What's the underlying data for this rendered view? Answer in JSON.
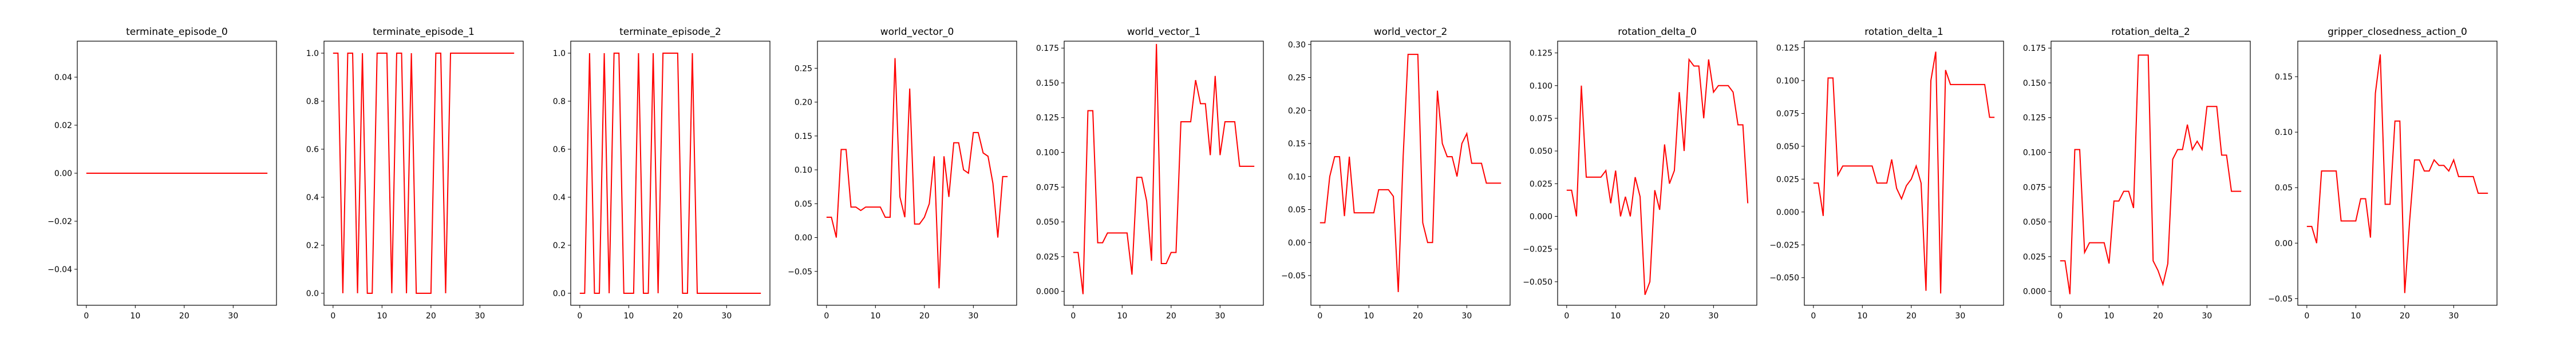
{
  "line_color": "#ff0000",
  "chart_data": [
    {
      "type": "line",
      "title": "terminate_episode_0",
      "x": [
        0,
        1,
        2,
        3,
        4,
        5,
        6,
        7,
        8,
        9,
        10,
        11,
        12,
        13,
        14,
        15,
        16,
        17,
        18,
        19,
        20,
        21,
        22,
        23,
        24,
        25,
        26,
        27,
        28,
        29,
        30,
        31,
        32,
        33,
        34,
        35,
        36,
        37
      ],
      "values": [
        0,
        0,
        0,
        0,
        0,
        0,
        0,
        0,
        0,
        0,
        0,
        0,
        0,
        0,
        0,
        0,
        0,
        0,
        0,
        0,
        0,
        0,
        0,
        0,
        0,
        0,
        0,
        0,
        0,
        0,
        0,
        0,
        0,
        0,
        0,
        0,
        0,
        0
      ],
      "xlim": [
        -1.85,
        38.85
      ],
      "ylim": [
        -0.055,
        0.055
      ],
      "xticks": [
        0,
        10,
        20,
        30
      ],
      "yticks": [
        -0.04,
        -0.02,
        0.0,
        0.02,
        0.04
      ],
      "xtick_labels": [
        "0",
        "10",
        "20",
        "30"
      ],
      "ytick_labels": [
        "−0.04",
        "−0.02",
        "0.00",
        "0.02",
        "0.04"
      ]
    },
    {
      "type": "line",
      "title": "terminate_episode_1",
      "x": [
        0,
        1,
        2,
        3,
        4,
        5,
        6,
        7,
        8,
        9,
        10,
        11,
        12,
        13,
        14,
        15,
        16,
        17,
        18,
        19,
        20,
        21,
        22,
        23,
        24,
        25,
        26,
        27,
        28,
        29,
        30,
        31,
        32,
        33,
        34,
        35,
        36,
        37
      ],
      "values": [
        1,
        1,
        0,
        1,
        1,
        0,
        1,
        0,
        0,
        1,
        1,
        1,
        0,
        1,
        1,
        0,
        1,
        0,
        0,
        0,
        0,
        1,
        1,
        0,
        1,
        1,
        1,
        1,
        1,
        1,
        1,
        1,
        1,
        1,
        1,
        1,
        1,
        1
      ],
      "xlim": [
        -1.85,
        38.85
      ],
      "ylim": [
        -0.05,
        1.05
      ],
      "xticks": [
        0,
        10,
        20,
        30
      ],
      "yticks": [
        0.0,
        0.2,
        0.4,
        0.6,
        0.8,
        1.0
      ],
      "xtick_labels": [
        "0",
        "10",
        "20",
        "30"
      ],
      "ytick_labels": [
        "0.0",
        "0.2",
        "0.4",
        "0.6",
        "0.8",
        "1.0"
      ]
    },
    {
      "type": "line",
      "title": "terminate_episode_2",
      "x": [
        0,
        1,
        2,
        3,
        4,
        5,
        6,
        7,
        8,
        9,
        10,
        11,
        12,
        13,
        14,
        15,
        16,
        17,
        18,
        19,
        20,
        21,
        22,
        23,
        24,
        25,
        26,
        27,
        28,
        29,
        30,
        31,
        32,
        33,
        34,
        35,
        36,
        37
      ],
      "values": [
        0,
        0,
        1,
        0,
        0,
        1,
        0,
        1,
        1,
        0,
        0,
        0,
        1,
        0,
        0,
        1,
        0,
        1,
        1,
        1,
        1,
        0,
        0,
        1,
        0,
        0,
        0,
        0,
        0,
        0,
        0,
        0,
        0,
        0,
        0,
        0,
        0,
        0
      ],
      "xlim": [
        -1.85,
        38.85
      ],
      "ylim": [
        -0.05,
        1.05
      ],
      "xticks": [
        0,
        10,
        20,
        30
      ],
      "yticks": [
        0.0,
        0.2,
        0.4,
        0.6,
        0.8,
        1.0
      ],
      "xtick_labels": [
        "0",
        "10",
        "20",
        "30"
      ],
      "ytick_labels": [
        "0.0",
        "0.2",
        "0.4",
        "0.6",
        "0.8",
        "1.0"
      ]
    },
    {
      "type": "line",
      "title": "world_vector_0",
      "x": [
        0,
        1,
        2,
        3,
        4,
        5,
        6,
        7,
        8,
        9,
        10,
        11,
        12,
        13,
        14,
        15,
        16,
        17,
        18,
        19,
        20,
        21,
        22,
        23,
        24,
        25,
        26,
        27,
        28,
        29,
        30,
        31,
        32,
        33,
        34,
        35,
        36,
        37
      ],
      "values": [
        0.03,
        0.03,
        0.0,
        0.13,
        0.13,
        0.045,
        0.045,
        0.04,
        0.045,
        0.045,
        0.045,
        0.045,
        0.03,
        0.03,
        0.265,
        0.06,
        0.03,
        0.22,
        0.02,
        0.02,
        0.03,
        0.05,
        0.12,
        -0.075,
        0.12,
        0.06,
        0.14,
        0.14,
        0.1,
        0.095,
        0.155,
        0.155,
        0.125,
        0.12,
        0.08,
        0.0,
        0.09,
        0.09
      ],
      "xlim": [
        -1.85,
        38.85
      ],
      "ylim": [
        -0.1,
        0.29
      ],
      "xticks": [
        0,
        10,
        20,
        30
      ],
      "yticks": [
        -0.05,
        0.0,
        0.05,
        0.1,
        0.15,
        0.2,
        0.25
      ],
      "xtick_labels": [
        "0",
        "10",
        "20",
        "30"
      ],
      "ytick_labels": [
        "−0.05",
        "0.00",
        "0.05",
        "0.10",
        "0.15",
        "0.20",
        "0.25"
      ]
    },
    {
      "type": "line",
      "title": "world_vector_1",
      "x": [
        0,
        1,
        2,
        3,
        4,
        5,
        6,
        7,
        8,
        9,
        10,
        11,
        12,
        13,
        14,
        15,
        16,
        17,
        18,
        19,
        20,
        21,
        22,
        23,
        24,
        25,
        26,
        27,
        28,
        29,
        30,
        31,
        32,
        33,
        34,
        35,
        36,
        37
      ],
      "values": [
        0.028,
        0.028,
        -0.002,
        0.13,
        0.13,
        0.035,
        0.035,
        0.042,
        0.042,
        0.042,
        0.042,
        0.042,
        0.012,
        0.082,
        0.082,
        0.065,
        0.022,
        0.178,
        0.02,
        0.02,
        0.028,
        0.028,
        0.122,
        0.122,
        0.122,
        0.152,
        0.135,
        0.135,
        0.098,
        0.155,
        0.098,
        0.122,
        0.122,
        0.122,
        0.09,
        0.09,
        0.09,
        0.09
      ],
      "xlim": [
        -1.85,
        38.85
      ],
      "ylim": [
        -0.01,
        0.18
      ],
      "xticks": [
        0,
        10,
        20,
        30
      ],
      "yticks": [
        0.0,
        0.025,
        0.05,
        0.075,
        0.1,
        0.125,
        0.15,
        0.175
      ],
      "xtick_labels": [
        "0",
        "10",
        "20",
        "30"
      ],
      "ytick_labels": [
        "0.000",
        "0.025",
        "0.050",
        "0.075",
        "0.100",
        "0.125",
        "0.150",
        "0.175"
      ]
    },
    {
      "type": "line",
      "title": "world_vector_2",
      "x": [
        0,
        1,
        2,
        3,
        4,
        5,
        6,
        7,
        8,
        9,
        10,
        11,
        12,
        13,
        14,
        15,
        16,
        17,
        18,
        19,
        20,
        21,
        22,
        23,
        24,
        25,
        26,
        27,
        28,
        29,
        30,
        31,
        32,
        33,
        34,
        35,
        36,
        37
      ],
      "values": [
        0.03,
        0.03,
        0.1,
        0.13,
        0.13,
        0.04,
        0.13,
        0.045,
        0.045,
        0.045,
        0.045,
        0.045,
        0.08,
        0.08,
        0.08,
        0.07,
        -0.075,
        0.13,
        0.285,
        0.285,
        0.285,
        0.03,
        0.0,
        0.0,
        0.23,
        0.15,
        0.13,
        0.13,
        0.1,
        0.15,
        0.165,
        0.12,
        0.12,
        0.12,
        0.09,
        0.09,
        0.09,
        0.09
      ],
      "xlim": [
        -1.85,
        38.85
      ],
      "ylim": [
        -0.095,
        0.305
      ],
      "xticks": [
        0,
        10,
        20,
        30
      ],
      "yticks": [
        -0.05,
        0.0,
        0.05,
        0.1,
        0.15,
        0.2,
        0.25,
        0.3
      ],
      "xtick_labels": [
        "0",
        "10",
        "20",
        "30"
      ],
      "ytick_labels": [
        "−0.05",
        "0.00",
        "0.05",
        "0.10",
        "0.15",
        "0.20",
        "0.25",
        "0.30"
      ]
    },
    {
      "type": "line",
      "title": "rotation_delta_0",
      "x": [
        0,
        1,
        2,
        3,
        4,
        5,
        6,
        7,
        8,
        9,
        10,
        11,
        12,
        13,
        14,
        15,
        16,
        17,
        18,
        19,
        20,
        21,
        22,
        23,
        24,
        25,
        26,
        27,
        28,
        29,
        30,
        31,
        32,
        33,
        34,
        35,
        36,
        37
      ],
      "values": [
        0.02,
        0.02,
        0.0,
        0.1,
        0.03,
        0.03,
        0.03,
        0.03,
        0.035,
        0.01,
        0.035,
        0.0,
        0.015,
        0.0,
        0.03,
        0.015,
        -0.06,
        -0.05,
        0.02,
        0.005,
        0.055,
        0.025,
        0.035,
        0.095,
        0.05,
        0.12,
        0.115,
        0.115,
        0.075,
        0.12,
        0.095,
        0.1,
        0.1,
        0.1,
        0.095,
        0.07,
        0.07,
        0.01
      ],
      "xlim": [
        -1.85,
        38.85
      ],
      "ylim": [
        -0.068,
        0.134
      ],
      "xticks": [
        0,
        10,
        20,
        30
      ],
      "yticks": [
        -0.05,
        -0.025,
        0.0,
        0.025,
        0.05,
        0.075,
        0.1,
        0.125
      ],
      "xtick_labels": [
        "0",
        "10",
        "20",
        "30"
      ],
      "ytick_labels": [
        "−0.050",
        "−0.025",
        "0.000",
        "0.025",
        "0.050",
        "0.075",
        "0.100",
        "0.125"
      ]
    },
    {
      "type": "line",
      "title": "rotation_delta_1",
      "x": [
        0,
        1,
        2,
        3,
        4,
        5,
        6,
        7,
        8,
        9,
        10,
        11,
        12,
        13,
        14,
        15,
        16,
        17,
        18,
        19,
        20,
        21,
        22,
        23,
        24,
        25,
        26,
        27,
        28,
        29,
        30,
        31,
        32,
        33,
        34,
        35,
        36,
        37
      ],
      "values": [
        0.022,
        0.022,
        -0.003,
        0.102,
        0.102,
        0.028,
        0.035,
        0.035,
        0.035,
        0.035,
        0.035,
        0.035,
        0.035,
        0.022,
        0.022,
        0.022,
        0.04,
        0.018,
        0.01,
        0.02,
        0.025,
        0.035,
        0.022,
        -0.06,
        0.1,
        0.122,
        -0.062,
        0.108,
        0.097,
        0.097,
        0.097,
        0.097,
        0.097,
        0.097,
        0.097,
        0.097,
        0.072,
        0.072
      ],
      "xlim": [
        -1.85,
        38.85
      ],
      "ylim": [
        -0.071,
        0.13
      ],
      "xticks": [
        0,
        10,
        20,
        30
      ],
      "yticks": [
        -0.05,
        -0.025,
        0.0,
        0.025,
        0.05,
        0.075,
        0.1,
        0.125
      ],
      "xtick_labels": [
        "0",
        "10",
        "20",
        "30"
      ],
      "ytick_labels": [
        "−0.050",
        "−0.025",
        "0.000",
        "0.025",
        "0.050",
        "0.075",
        "0.100",
        "0.125"
      ]
    },
    {
      "type": "line",
      "title": "rotation_delta_2",
      "x": [
        0,
        1,
        2,
        3,
        4,
        5,
        6,
        7,
        8,
        9,
        10,
        11,
        12,
        13,
        14,
        15,
        16,
        17,
        18,
        19,
        20,
        21,
        22,
        23,
        24,
        25,
        26,
        27,
        28,
        29,
        30,
        31,
        32,
        33,
        34,
        35,
        36,
        37
      ],
      "values": [
        0.022,
        0.022,
        -0.002,
        0.102,
        0.102,
        0.028,
        0.035,
        0.035,
        0.035,
        0.035,
        0.02,
        0.065,
        0.065,
        0.072,
        0.072,
        0.06,
        0.17,
        0.17,
        0.17,
        0.022,
        0.015,
        0.005,
        0.02,
        0.095,
        0.102,
        0.102,
        0.12,
        0.102,
        0.108,
        0.102,
        0.133,
        0.133,
        0.133,
        0.098,
        0.098,
        0.072,
        0.072,
        0.072
      ],
      "xlim": [
        -1.85,
        38.85
      ],
      "ylim": [
        -0.01,
        0.18
      ],
      "xticks": [
        0,
        10,
        20,
        30
      ],
      "yticks": [
        0.0,
        0.025,
        0.05,
        0.075,
        0.1,
        0.125,
        0.15,
        0.175
      ],
      "xtick_labels": [
        "0",
        "10",
        "20",
        "30"
      ],
      "ytick_labels": [
        "0.000",
        "0.025",
        "0.050",
        "0.075",
        "0.100",
        "0.125",
        "0.150",
        "0.175"
      ]
    },
    {
      "type": "line",
      "title": "gripper_closedness_action_0",
      "x": [
        0,
        1,
        2,
        3,
        4,
        5,
        6,
        7,
        8,
        9,
        10,
        11,
        12,
        13,
        14,
        15,
        16,
        17,
        18,
        19,
        20,
        21,
        22,
        23,
        24,
        25,
        26,
        27,
        28,
        29,
        30,
        31,
        32,
        33,
        34,
        35,
        36,
        37
      ],
      "values": [
        0.015,
        0.015,
        0.0,
        0.065,
        0.065,
        0.065,
        0.065,
        0.02,
        0.02,
        0.02,
        0.02,
        0.04,
        0.04,
        0.005,
        0.135,
        0.17,
        0.035,
        0.035,
        0.11,
        0.11,
        -0.045,
        0.02,
        0.075,
        0.075,
        0.065,
        0.065,
        0.075,
        0.07,
        0.07,
        0.065,
        0.075,
        0.06,
        0.06,
        0.06,
        0.06,
        0.045,
        0.045,
        0.045
      ],
      "xlim": [
        -1.85,
        38.85
      ],
      "ylim": [
        -0.056,
        0.182
      ],
      "xticks": [
        0,
        10,
        20,
        30
      ],
      "yticks": [
        -0.05,
        0.0,
        0.05,
        0.1,
        0.15
      ],
      "xtick_labels": [
        "0",
        "10",
        "20",
        "30"
      ],
      "ytick_labels": [
        "−0.05",
        "0.00",
        "0.05",
        "0.10",
        "0.15"
      ]
    }
  ]
}
